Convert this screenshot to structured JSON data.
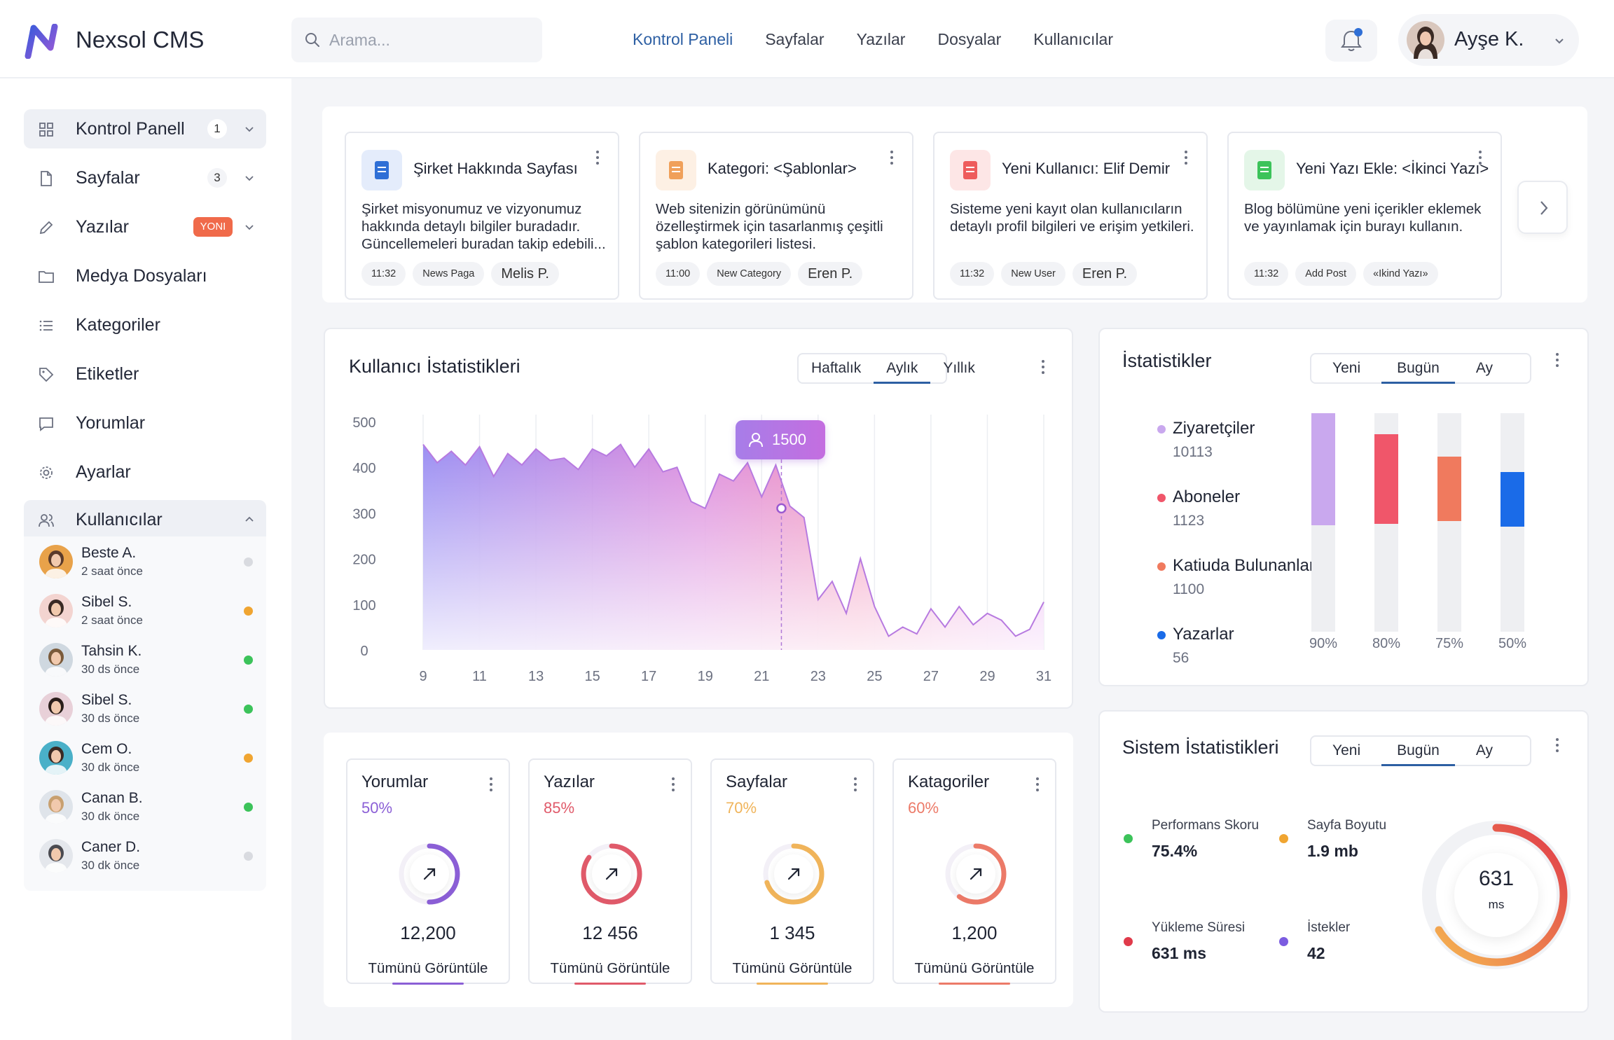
{
  "app": {
    "name": "Nexsol CMS"
  },
  "search": {
    "placeholder": "Arama..."
  },
  "topnav": [
    "Kontrol Paneli",
    "Sayfalar",
    "Yazılar",
    "Dosyalar",
    "Kullanıcılar"
  ],
  "user": {
    "name": "Ayşe K."
  },
  "sidebar": {
    "items": [
      {
        "label": "Kontrol Panell",
        "badge": "1",
        "icon": "grid-icon"
      },
      {
        "label": "Sayfalar",
        "badge": "3",
        "icon": "file-icon"
      },
      {
        "label": "Yazılar",
        "badge": "YONI",
        "icon": "pencil-icon"
      },
      {
        "label": "Medya Dosyaları",
        "icon": "folder-icon"
      },
      {
        "label": "Kategoriler",
        "icon": "list-icon"
      },
      {
        "label": "Etiketler",
        "icon": "tag-icon"
      },
      {
        "label": "Yorumlar",
        "icon": "comment-icon"
      },
      {
        "label": "Ayarlar",
        "icon": "gear-icon"
      },
      {
        "label": "Kullanıcılar",
        "icon": "users-icon"
      }
    ],
    "users": [
      {
        "name": "Beste A.",
        "time": "2 saat önce",
        "status": "#d9dbe0"
      },
      {
        "name": "Sibel S.",
        "time": "2 saat önce",
        "status": "#f0a531"
      },
      {
        "name": "Tahsin K.",
        "time": "30 ds önce",
        "status": "#3cc35a"
      },
      {
        "name": "Sibel S.",
        "time": "30 ds önce",
        "status": "#3cc35a"
      },
      {
        "name": "Cem O.",
        "time": "30 dk önce",
        "status": "#f0a531"
      },
      {
        "name": "Canan B.",
        "time": "30 dk önce",
        "status": "#3cc35a"
      },
      {
        "name": "Caner D.",
        "time": "30 dk önce",
        "status": "#d9dbe0"
      }
    ]
  },
  "quick_cards": [
    {
      "title": "Şirket Hakkında Sayfası",
      "desc": "Şirket misyonumuz ve vizyonumuz hakkında detaylı bilgiler buradadır. Güncellemeleri buradan takip edebili...",
      "tags": [
        "11:32",
        "News Paga",
        "Melis P."
      ],
      "icon": "document-icon",
      "color": "#2f6fd6"
    },
    {
      "title": "Kategori: <Şablonlar>",
      "desc": "Web sitenizin görünümünü özelleştirmek için tasarlanmış çeşitli şablon kategorileri listesi.",
      "tags": [
        "11:00",
        "New Category",
        "Eren P."
      ],
      "icon": "list-icon",
      "color": "#f0a05a"
    },
    {
      "title": "Yeni Kullanıcı: Elif Demir",
      "desc": "Sisteme yeni kayıt olan kullanıcıların detaylı profil bilgileri ve erişim yetkileri.",
      "tags": [
        "11:32",
        "New User",
        "Eren P."
      ],
      "icon": "user-icon",
      "color": "#ee5c5c"
    },
    {
      "title": "Yeni Yazı Ekle: <İkinci Yazı>",
      "desc": "Blog bölümüne yeni içerikler eklemek ve yayınlamak için burayı kullanın.",
      "tags": [
        "11:32",
        "Add Post",
        "«Ikind Yazı»"
      ],
      "icon": "sheet-icon",
      "color": "#3cc35a"
    }
  ],
  "user_stats": {
    "title": "Kullanıcı İstatistikleri",
    "tabs": [
      "Haftalık",
      "Aylık",
      "Yıllık"
    ],
    "active_tab": "Aylık",
    "tooltip": "1500"
  },
  "chart_data": {
    "type": "area",
    "x": [
      9,
      9.5,
      10,
      10.5,
      11,
      11.5,
      12,
      12.5,
      13,
      13.5,
      14,
      14.5,
      15,
      15.5,
      16,
      16.5,
      17,
      17.5,
      18,
      18.5,
      19,
      19.5,
      20,
      20.5,
      21,
      21.5,
      22,
      22.5,
      23,
      23.5,
      24,
      24.5,
      25,
      25.5,
      26,
      26.5,
      27,
      27.5,
      28,
      28.5,
      29,
      29.5,
      30,
      30.5,
      31
    ],
    "values": [
      450,
      410,
      435,
      405,
      445,
      380,
      430,
      405,
      440,
      415,
      420,
      395,
      440,
      425,
      450,
      400,
      440,
      390,
      400,
      325,
      310,
      385,
      370,
      410,
      335,
      405,
      315,
      290,
      110,
      150,
      80,
      200,
      95,
      30,
      50,
      35,
      90,
      50,
      95,
      55,
      80,
      65,
      30,
      45,
      105
    ],
    "xticks": [
      9,
      11,
      13,
      15,
      17,
      19,
      21,
      23,
      25,
      27,
      29,
      31
    ],
    "yticks": [
      0,
      100,
      200,
      300,
      400,
      500
    ],
    "ylim": [
      0,
      500
    ],
    "xlim": [
      9,
      31
    ],
    "highlight_x": 21.7,
    "highlight_y": 310,
    "grid": true
  },
  "istatistikler": {
    "title": "İstatistikler",
    "tabs": [
      "Yeni",
      "Bugün",
      "Ay"
    ],
    "active_tab": "Bugün",
    "items": [
      {
        "label": "Ziyaretçiler",
        "value": "10113",
        "color": "#c9a8ee",
        "pct": "90%",
        "bar": 0.9
      },
      {
        "label": "Aboneler",
        "value": "1123",
        "color": "#f0566a",
        "pct": "80%",
        "bar": 0.8
      },
      {
        "label": "Katiuda Bulunanlar",
        "value": "1100",
        "color": "#f07a5e",
        "pct": "75%",
        "bar": 0.75
      },
      {
        "label": "Yazarlar",
        "value": "56",
        "color": "#1a6be8",
        "pct": "50%",
        "bar": 0.5
      }
    ]
  },
  "mini_stats": [
    {
      "title": "Yorumlar",
      "pct": "50%",
      "value": "12,200",
      "link": "Tümünü Görüntüle",
      "color": "#8b5fd6",
      "fill": 0.5
    },
    {
      "title": "Yazılar",
      "pct": "85%",
      "value": "12 456",
      "link": "Tümünü Görüntüle",
      "color": "#e05a6a",
      "fill": 0.85
    },
    {
      "title": "Sayfalar",
      "pct": "70%",
      "value": "1 345",
      "link": "Tümünü Görüntüle",
      "color": "#f0b45a",
      "fill": 0.7
    },
    {
      "title": "Katagoriler",
      "pct": "60%",
      "value": "1,200",
      "link": "Tümünü Görüntüle",
      "color": "#ec7a68",
      "fill": 0.6
    }
  ],
  "system_stats": {
    "title": "Sistem İstatistikleri",
    "tabs": [
      "Yeni",
      "Bugün",
      "Ay"
    ],
    "active_tab": "Bugün",
    "metrics": [
      {
        "label": "Performans Skoru",
        "value": "75.4%",
        "color": "#3cc35a"
      },
      {
        "label": "Sayfa Boyutu",
        "value": "1.9 mb",
        "color": "#f0a531"
      },
      {
        "label": "Yükleme Süresi",
        "value": "631 ms",
        "color": "#e03a4a"
      },
      {
        "label": "İstekler",
        "value": "42",
        "color": "#7b5ce0"
      }
    ],
    "gauge_value": "631",
    "gauge_unit": "ms"
  }
}
